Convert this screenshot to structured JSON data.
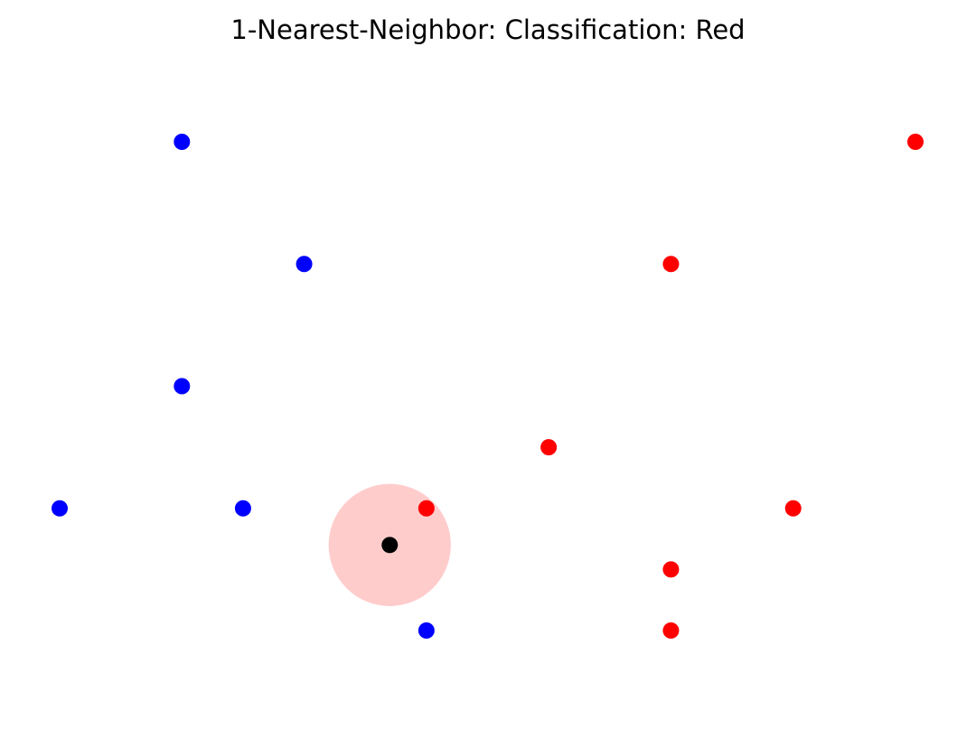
{
  "chart_data": {
    "type": "scatter",
    "title": "1-Nearest-Neighbor: Classification: Red",
    "xlabel": "",
    "ylabel": "",
    "xlim": [
      1,
      8
    ],
    "ylim": [
      1,
      6
    ],
    "grid": false,
    "axes_visible": false,
    "series": [
      {
        "name": "",
        "class": "blue",
        "color": "#0000ff",
        "points": [
          {
            "x": 2,
            "y": 6
          },
          {
            "x": 3,
            "y": 5
          },
          {
            "x": 2,
            "y": 4
          },
          {
            "x": 1,
            "y": 3
          },
          {
            "x": 2.5,
            "y": 3
          },
          {
            "x": 4,
            "y": 2
          }
        ]
      },
      {
        "name": "",
        "class": "red",
        "color": "#ff0000",
        "points": [
          {
            "x": 8,
            "y": 6
          },
          {
            "x": 6,
            "y": 5
          },
          {
            "x": 5,
            "y": 3.5
          },
          {
            "x": 4,
            "y": 3
          },
          {
            "x": 7,
            "y": 3
          },
          {
            "x": 6,
            "y": 2.5
          },
          {
            "x": 6,
            "y": 2
          }
        ]
      }
    ],
    "query_point": {
      "x": 3.7,
      "y": 2.7,
      "color": "#000000"
    },
    "neighborhood": {
      "center_x": 3.7,
      "center_y": 2.7,
      "radius": 0.5,
      "color": "#ffcccc"
    },
    "k": 1,
    "prediction": "Red"
  }
}
